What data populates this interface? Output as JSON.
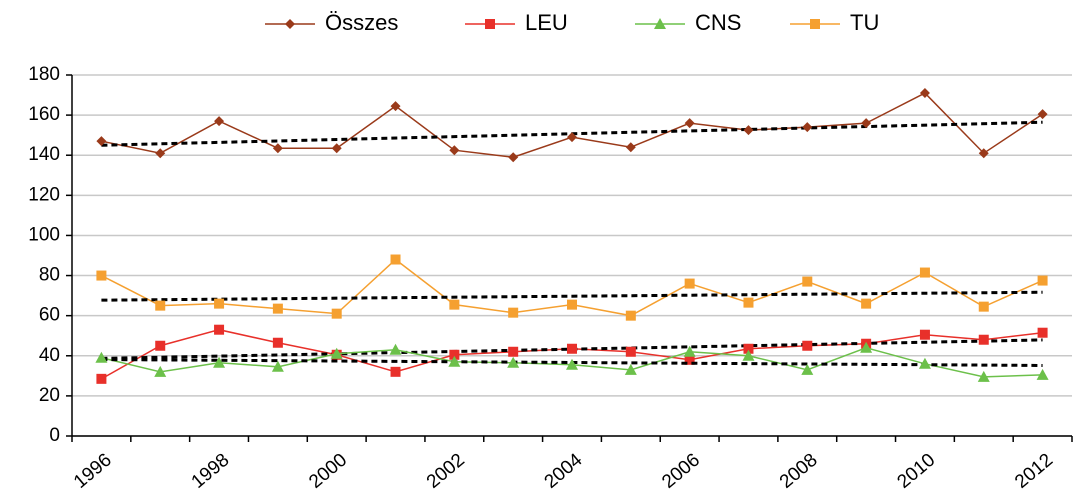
{
  "chart_data": {
    "type": "line",
    "categories": [
      "1996",
      null,
      "1998",
      null,
      "2000",
      null,
      "2002",
      null,
      "2004",
      null,
      "2006",
      null,
      "2008",
      null,
      "2010",
      null,
      "2012"
    ],
    "series": [
      {
        "name": "Összes",
        "color": "#9a3a1a",
        "marker": "diamond",
        "values": [
          147,
          141,
          157,
          143.5,
          143.5,
          164.5,
          142.5,
          139,
          149,
          144,
          156,
          152.5,
          154,
          156,
          171,
          141,
          160.5
        ]
      },
      {
        "name": "LEU",
        "color": "#e8302a",
        "marker": "square",
        "values": [
          28.5,
          45,
          53,
          46.5,
          40.5,
          32,
          40.5,
          42,
          43.5,
          42,
          38,
          43.5,
          45,
          46,
          50.5,
          48,
          51.5
        ]
      },
      {
        "name": "CNS",
        "color": "#6cc04a",
        "marker": "triangle",
        "values": [
          39,
          32,
          36.5,
          34.5,
          41,
          43,
          37,
          36.5,
          35.5,
          33,
          42,
          40,
          33,
          44,
          36,
          29.5,
          30.5
        ]
      },
      {
        "name": "TU",
        "color": "#f5a030",
        "marker": "square",
        "values": [
          80,
          65,
          66,
          63.5,
          61,
          88,
          65.5,
          61.5,
          65.5,
          60,
          76,
          66.5,
          77,
          66,
          81.5,
          64.5,
          77.5
        ]
      }
    ],
    "ylim": [
      0,
      180
    ],
    "yticks": [
      0,
      20,
      40,
      60,
      80,
      100,
      120,
      140,
      160,
      180
    ],
    "grid": true,
    "trendline": true,
    "legend": "top"
  }
}
